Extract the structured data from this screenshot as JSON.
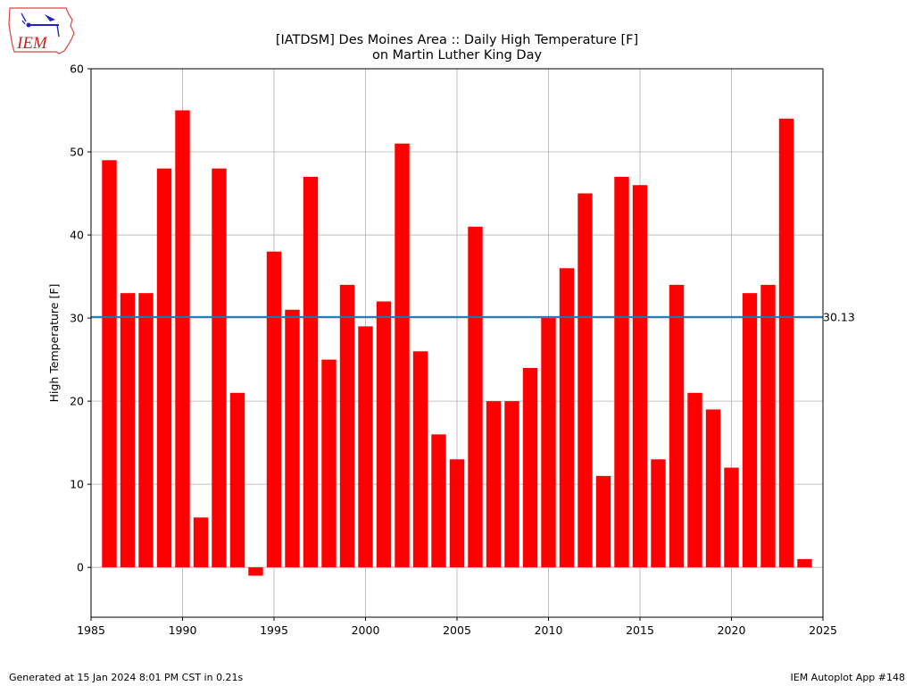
{
  "logo": {
    "text": "IEM",
    "icon": "iem-iowa-logo-icon"
  },
  "chart_data": {
    "type": "bar",
    "title": "[IATDSM] Des Moines Area :: Daily High Temperature [F]",
    "subtitle": "on Martin Luther King Day",
    "xlabel": "",
    "ylabel": "High Temperature [F]",
    "x": [
      1986,
      1987,
      1988,
      1989,
      1990,
      1991,
      1992,
      1993,
      1994,
      1995,
      1996,
      1997,
      1998,
      1999,
      2000,
      2001,
      2002,
      2003,
      2004,
      2005,
      2006,
      2007,
      2008,
      2009,
      2010,
      2011,
      2012,
      2013,
      2014,
      2015,
      2016,
      2017,
      2018,
      2019,
      2020,
      2021,
      2022,
      2023,
      2024
    ],
    "values": [
      49,
      33,
      33,
      48,
      55,
      6,
      48,
      21,
      -1,
      38,
      31,
      47,
      25,
      34,
      29,
      32,
      51,
      26,
      16,
      13,
      41,
      20,
      20,
      24,
      30,
      36,
      45,
      11,
      47,
      46,
      13,
      34,
      21,
      19,
      12,
      33,
      34,
      54,
      1
    ],
    "xlim": [
      1985,
      2025
    ],
    "ylim": [
      -6,
      60
    ],
    "xticks": [
      1985,
      1990,
      1995,
      2000,
      2005,
      2010,
      2015,
      2020,
      2025
    ],
    "yticks": [
      0,
      10,
      20,
      30,
      40,
      50,
      60
    ],
    "average": 30.13,
    "average_label": "30.13",
    "bar_color": "#ff0000",
    "average_color": "#1f77b4",
    "grid": true
  },
  "footer": {
    "generated": "Generated at 15 Jan 2024 8:01 PM CST in 0.21s",
    "app": "IEM Autoplot App #148"
  }
}
